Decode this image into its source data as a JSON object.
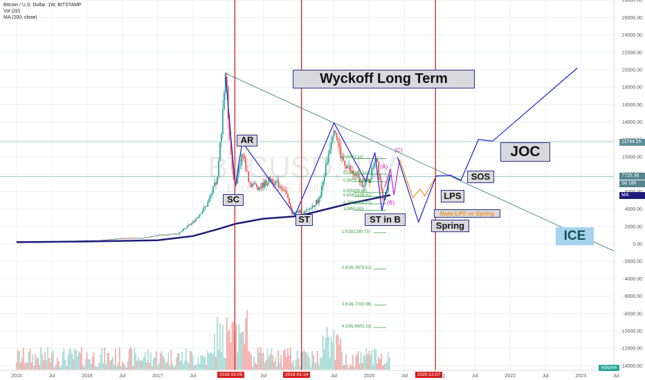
{
  "header": {
    "symbol_line": "Bitcoin / U.S. Dollar, 1W, BITSTAMP",
    "indicator_vol": "Vol (20)",
    "indicator_ma": "MA (200, close)"
  },
  "watermark": {
    "big": "BTCUSD, 1W",
    "sub": "Bitcoin / U.S. Dollar"
  },
  "annotations": {
    "title": "Wyckoff Long Term",
    "ar": "AR",
    "sc": "SC",
    "st": "ST",
    "st_in_b": "ST in B",
    "spring": "Spring",
    "lps": "LPS",
    "sos": "SOS",
    "joc": "JOC",
    "ice": "ICE",
    "note": "Note:LPS or Spring",
    "wave_a": "(A)",
    "wave_b": "(B)",
    "wave_c": "(C)"
  },
  "fib_labels": [
    "0(9802.12)",
    "0.236(8013.07)",
    "0.382(7154.66)",
    "0.5(5928.48)",
    "0.618(5438.41)",
    "0.786(4605.21)",
    "1(3850.00)",
    "1.618(1280.75)",
    "2.618(-2876.61)",
    "3.618(-7033.98)",
    "4.236(-9603.23)"
  ],
  "price_tags": {
    "ice_level": "11744.25",
    "current_price": "7725.36",
    "countdown": "5d 18h",
    "ma_tag": "MA",
    "volume_tag": "Volume"
  },
  "date_markers": [
    "2018-02-05",
    "2019-01-14",
    "2020-12-07"
  ],
  "colors": {
    "up": "#26a69a",
    "down": "#ef5350",
    "ma": "#1f1b7a",
    "trendline": "#4d8f7e",
    "projection": "#1a1ad6",
    "red_line": "#d42020",
    "abc": "#c21fc2",
    "orange": "#f0941e"
  },
  "chart_data": {
    "type": "line",
    "title": "Bitcoin / U.S. Dollar, 1W, BITSTAMP",
    "xlabel": "",
    "ylabel": "",
    "y_ticks": [
      28000,
      26000,
      24000,
      22000,
      20000,
      18000,
      16000,
      14000,
      12000,
      10000,
      8000,
      6000,
      4000,
      2000,
      0,
      -2000,
      -4000,
      -6000,
      -8000,
      -10000,
      -12000,
      -14000
    ],
    "x_ticks": [
      "2015",
      "Jul",
      "2016",
      "Jul",
      "2017",
      "Jul",
      "2018",
      "Jul",
      "2019",
      "Jul",
      "2020",
      "Jul",
      "2021",
      "Jul",
      "2022",
      "Jul",
      "2023",
      "Jul"
    ],
    "ylim": [
      -14500,
      29000
    ],
    "xlim": [
      2014.95,
      2023.6
    ],
    "series": [
      {
        "name": "BTCUSD",
        "values": [
          [
            2015.0,
            320
          ],
          [
            2015.3,
            240
          ],
          [
            2015.6,
            260
          ],
          [
            2015.9,
            380
          ],
          [
            2016.2,
            420
          ],
          [
            2016.5,
            650
          ],
          [
            2016.8,
            700
          ],
          [
            2017.0,
            980
          ],
          [
            2017.3,
            1200
          ],
          [
            2017.5,
            2500
          ],
          [
            2017.7,
            4500
          ],
          [
            2017.85,
            7500
          ],
          [
            2017.96,
            19600
          ],
          [
            2018.05,
            9000
          ],
          [
            2018.1,
            6800
          ],
          [
            2018.2,
            10500
          ],
          [
            2018.3,
            7000
          ],
          [
            2018.45,
            6500
          ],
          [
            2018.6,
            7500
          ],
          [
            2018.8,
            6300
          ],
          [
            2018.9,
            3500
          ],
          [
            2019.0,
            3700
          ],
          [
            2019.1,
            3600
          ],
          [
            2019.3,
            5200
          ],
          [
            2019.5,
            13800
          ],
          [
            2019.6,
            10000
          ],
          [
            2019.75,
            8200
          ],
          [
            2019.9,
            6900
          ],
          [
            2020.0,
            7200
          ],
          [
            2020.1,
            10300
          ],
          [
            2020.2,
            5000
          ],
          [
            2020.3,
            7725
          ]
        ]
      },
      {
        "name": "MA (200, close)",
        "values": [
          [
            2015.0,
            200
          ],
          [
            2016.0,
            280
          ],
          [
            2017.0,
            420
          ],
          [
            2017.5,
            900
          ],
          [
            2017.9,
            1800
          ],
          [
            2018.1,
            2300
          ],
          [
            2018.5,
            2900
          ],
          [
            2019.0,
            3200
          ],
          [
            2019.3,
            3800
          ],
          [
            2019.7,
            4600
          ],
          [
            2020.0,
            5100
          ],
          [
            2020.3,
            5600
          ]
        ]
      },
      {
        "name": "Projection",
        "values": [
          [
            2020.4,
            10000
          ],
          [
            2020.7,
            2500
          ],
          [
            2020.95,
            7800
          ],
          [
            2021.15,
            7900
          ],
          [
            2021.3,
            7300
          ],
          [
            2021.55,
            12000
          ],
          [
            2021.75,
            11800
          ],
          [
            2022.95,
            20200
          ]
        ]
      }
    ],
    "trendlines": [
      {
        "from": [
          2017.96,
          19600
        ],
        "to": [
          2023.6,
          -1300
        ]
      }
    ],
    "horizontal_levels": [
      11744.25,
      7725.36
    ],
    "fib_levels": [
      {
        "ratio": "0",
        "price": 9802.12
      },
      {
        "ratio": "0.236",
        "price": 8013.07
      },
      {
        "ratio": "0.382",
        "price": 7154.66
      },
      {
        "ratio": "0.5",
        "price": 5928.48
      },
      {
        "ratio": "0.618",
        "price": 5438.41
      },
      {
        "ratio": "0.786",
        "price": 4605.21
      },
      {
        "ratio": "1",
        "price": 3850.0
      },
      {
        "ratio": "1.618",
        "price": 1280.75
      },
      {
        "ratio": "2.618",
        "price": -2876.61
      },
      {
        "ratio": "3.618",
        "price": -7033.98
      },
      {
        "ratio": "4.236",
        "price": -9603.23
      }
    ],
    "vertical_markers": [
      "2018-02-05",
      "2019-01-14",
      "2020-12-07"
    ]
  }
}
